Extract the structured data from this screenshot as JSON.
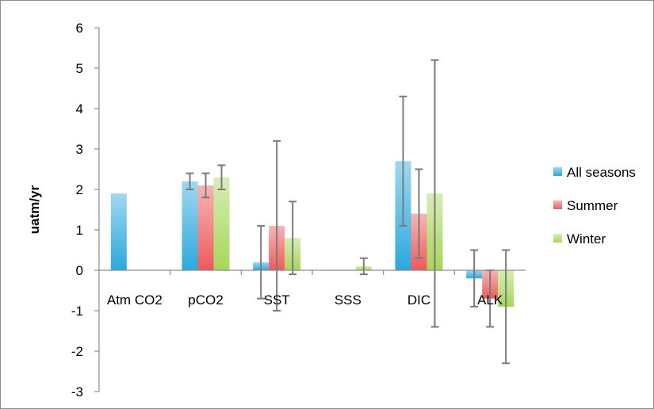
{
  "chart_data": {
    "type": "bar",
    "title": "",
    "xlabel": "",
    "ylabel": "uatm/yr",
    "ylim": [
      -3,
      6
    ],
    "yticks": [
      6,
      5,
      4,
      3,
      2,
      1,
      0,
      -1,
      -2,
      -3
    ],
    "categories": [
      "Atm CO2",
      "pCO2",
      "SST",
      "SSS",
      "DIC",
      "ALK"
    ],
    "grid": false,
    "legend_position": "right",
    "series": [
      {
        "name": "All seasons",
        "color": "#2aa9dd",
        "values": [
          1.9,
          2.2,
          0.2,
          0,
          2.7,
          -0.2
        ],
        "errors": [
          null,
          0.2,
          0.9,
          null,
          1.6,
          0.7
        ]
      },
      {
        "name": "Summer",
        "color": "#ee5a5a",
        "values": [
          null,
          2.1,
          1.1,
          0,
          1.4,
          -0.7
        ],
        "errors": [
          null,
          0.3,
          2.1,
          null,
          1.1,
          0.7
        ]
      },
      {
        "name": "Winter",
        "color": "#a6d65a",
        "values": [
          null,
          2.3,
          0.8,
          0.1,
          1.9,
          -0.9
        ],
        "errors": [
          null,
          0.3,
          0.9,
          0.2,
          3.3,
          1.4
        ]
      }
    ]
  }
}
